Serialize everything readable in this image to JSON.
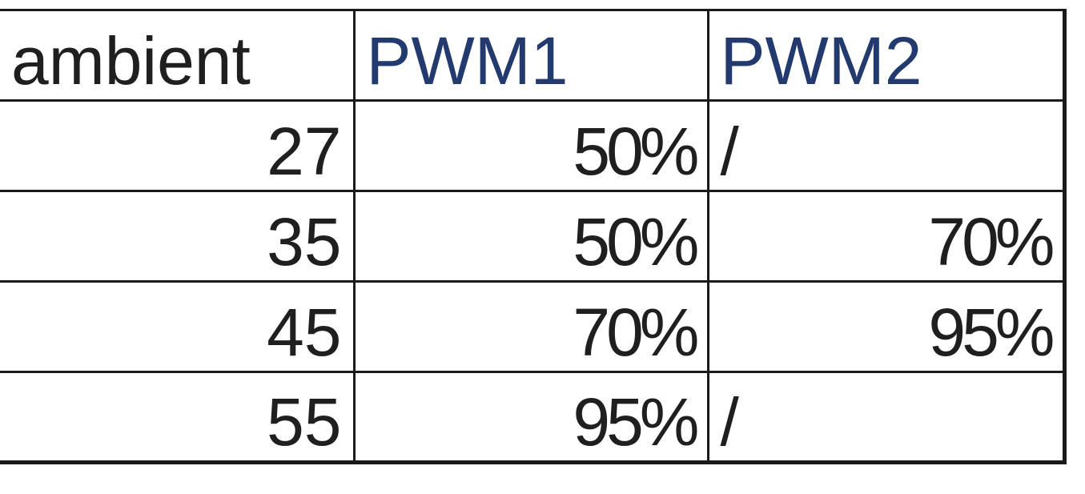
{
  "table": {
    "headers": [
      "ambient",
      "PWM1",
      "PWM2"
    ],
    "rows": [
      [
        "27",
        "50%",
        "/"
      ],
      [
        "35",
        "50%",
        "70%"
      ],
      [
        "45",
        "70%",
        "95%"
      ],
      [
        "55",
        "95%",
        "/"
      ]
    ]
  }
}
